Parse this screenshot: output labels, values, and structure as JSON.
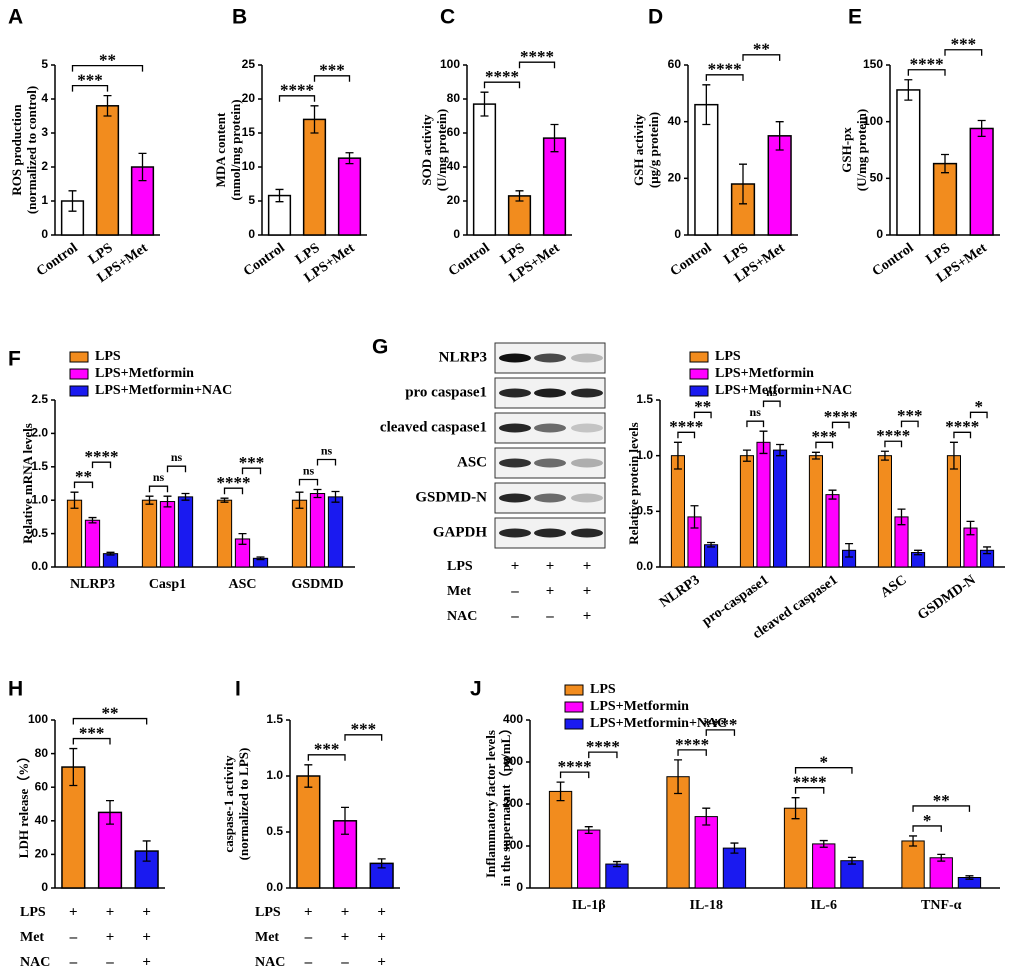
{
  "chart_data": [
    {
      "type": "bar",
      "panel": "A",
      "ylabel": [
        "ROS production",
        "(normalized to control)"
      ],
      "ylim": [
        0,
        5
      ],
      "yticks": [
        0,
        1,
        2,
        3,
        4,
        5
      ],
      "categories": [
        "Control",
        "LPS",
        "LPS+Met"
      ],
      "values": [
        1.0,
        3.8,
        2.0
      ],
      "errors": [
        0.3,
        0.3,
        0.4
      ],
      "colors": [
        "#ffffff",
        "#f28c1e",
        "#ff00ff"
      ],
      "brackets": [
        {
          "from": 0,
          "to": 1,
          "label": "***"
        },
        {
          "from": 0,
          "to": 2,
          "label": "**"
        }
      ]
    },
    {
      "type": "bar",
      "panel": "B",
      "ylabel": [
        "MDA content",
        "(nmol/mg protein)"
      ],
      "ylim": [
        0,
        25
      ],
      "yticks": [
        0,
        5,
        10,
        15,
        20,
        25
      ],
      "categories": [
        "Control",
        "LPS",
        "LPS+Met"
      ],
      "values": [
        5.8,
        17,
        11.3
      ],
      "errors": [
        0.9,
        2,
        0.8
      ],
      "colors": [
        "#ffffff",
        "#f28c1e",
        "#ff00ff"
      ],
      "brackets": [
        {
          "from": 0,
          "to": 1,
          "label": "****"
        },
        {
          "from": 1,
          "to": 2,
          "label": "***"
        }
      ]
    },
    {
      "type": "bar",
      "panel": "C",
      "ylabel": [
        "SOD activity",
        "(U/mg protein)"
      ],
      "ylim": [
        0,
        100
      ],
      "yticks": [
        0,
        20,
        40,
        60,
        80,
        100
      ],
      "categories": [
        "Control",
        "LPS",
        "LPS+Met"
      ],
      "values": [
        77,
        23,
        57
      ],
      "errors": [
        7,
        3,
        8
      ],
      "colors": [
        "#ffffff",
        "#f28c1e",
        "#ff00ff"
      ],
      "brackets": [
        {
          "from": 0,
          "to": 1,
          "label": "****"
        },
        {
          "from": 1,
          "to": 2,
          "label": "****"
        }
      ]
    },
    {
      "type": "bar",
      "panel": "D",
      "ylabel": [
        "GSH activity",
        "(μg/g protein)"
      ],
      "ylim": [
        0,
        60
      ],
      "yticks": [
        0,
        20,
        40,
        60
      ],
      "categories": [
        "Control",
        "LPS",
        "LPS+Met"
      ],
      "values": [
        46,
        18,
        35
      ],
      "errors": [
        7,
        7,
        5
      ],
      "colors": [
        "#ffffff",
        "#f28c1e",
        "#ff00ff"
      ],
      "brackets": [
        {
          "from": 0,
          "to": 1,
          "label": "****"
        },
        {
          "from": 1,
          "to": 2,
          "label": "**"
        }
      ]
    },
    {
      "type": "bar",
      "panel": "E",
      "ylabel": [
        "GSH-px",
        "(U/mg protein)"
      ],
      "ylim": [
        0,
        150
      ],
      "yticks": [
        0,
        50,
        100,
        150
      ],
      "categories": [
        "Control",
        "LPS",
        "LPS+Met"
      ],
      "values": [
        128,
        63,
        94
      ],
      "errors": [
        9,
        8,
        7
      ],
      "colors": [
        "#ffffff",
        "#f28c1e",
        "#ff00ff"
      ],
      "brackets": [
        {
          "from": 0,
          "to": 1,
          "label": "****"
        },
        {
          "from": 1,
          "to": 2,
          "label": "***"
        }
      ]
    },
    {
      "type": "grouped_bar",
      "panel": "F",
      "ylabel": [
        "Relative mRNA levels"
      ],
      "ylim": [
        0,
        2.5
      ],
      "yticks": [
        {
          "value": 0,
          "label": "0.0"
        },
        {
          "value": 0.5,
          "label": "0.5"
        },
        {
          "value": 1,
          "label": "1.0"
        },
        {
          "value": 1.5,
          "label": "1.5"
        },
        {
          "value": 2,
          "label": "2.0"
        },
        {
          "value": 2.5,
          "label": "2.5"
        }
      ],
      "categories": [
        "NLRP3",
        "Casp1",
        "ASC",
        "GSDMD"
      ],
      "legend": "upper left",
      "series": [
        {
          "name": "LPS",
          "color": "#f28c1e",
          "values": [
            1.0,
            1.0,
            1.0,
            1.0
          ],
          "errors": [
            0.12,
            0.06,
            0.03,
            0.12
          ]
        },
        {
          "name": "LPS+Metformin",
          "color": "#ff00ff",
          "values": [
            0.7,
            0.98,
            0.42,
            1.1
          ],
          "errors": [
            0.04,
            0.08,
            0.08,
            0.06
          ]
        },
        {
          "name": "LPS+Metformin+NAC",
          "color": "#1a1af0",
          "values": [
            0.2,
            1.05,
            0.13,
            1.05
          ],
          "errors": [
            0.02,
            0.05,
            0.02,
            0.08
          ]
        }
      ],
      "brackets": [
        {
          "category": 0,
          "from": 0,
          "to": 1,
          "label": "**"
        },
        {
          "category": 0,
          "from": 1,
          "to": 2,
          "label": "****"
        },
        {
          "category": 1,
          "from": 0,
          "to": 1,
          "label": "ns"
        },
        {
          "category": 1,
          "from": 1,
          "to": 2,
          "label": "ns"
        },
        {
          "category": 2,
          "from": 0,
          "to": 1,
          "label": "****"
        },
        {
          "category": 2,
          "from": 1,
          "to": 2,
          "label": "***"
        },
        {
          "category": 3,
          "from": 0,
          "to": 1,
          "label": "ns"
        },
        {
          "category": 3,
          "from": 1,
          "to": 2,
          "label": "ns"
        }
      ]
    },
    {
      "type": "grouped_bar",
      "ylabel": [
        "Relative protein levels"
      ],
      "ylim": [
        0,
        1.5
      ],
      "yticks": [
        {
          "value": 0,
          "label": "0.0"
        },
        {
          "value": 0.5,
          "label": "0.5"
        },
        {
          "value": 1,
          "label": "1.0"
        },
        {
          "value": 1.5,
          "label": "1.5"
        }
      ],
      "categories": [
        "NLRP3",
        "pro-caspase1",
        "cleaved caspase1",
        "ASC",
        "GSDMD-N"
      ],
      "legend": "upper left",
      "series": [
        {
          "name": "LPS",
          "color": "#f28c1e",
          "values": [
            1.0,
            1.0,
            1.0,
            1.0,
            1.0
          ],
          "errors": [
            0.12,
            0.05,
            0.03,
            0.04,
            0.12
          ]
        },
        {
          "name": "LPS+Metformin",
          "color": "#ff00ff",
          "values": [
            0.45,
            1.12,
            0.65,
            0.45,
            0.35
          ],
          "errors": [
            0.1,
            0.1,
            0.04,
            0.07,
            0.06
          ]
        },
        {
          "name": "LPS+Metformin+NAC",
          "color": "#1a1af0",
          "values": [
            0.2,
            1.05,
            0.15,
            0.13,
            0.15
          ],
          "errors": [
            0.02,
            0.05,
            0.06,
            0.02,
            0.03
          ]
        }
      ],
      "brackets": [
        {
          "category": 0,
          "from": 0,
          "to": 1,
          "label": "****"
        },
        {
          "category": 0,
          "from": 1,
          "to": 2,
          "label": "**"
        },
        {
          "category": 1,
          "from": 0,
          "to": 1,
          "label": "ns"
        },
        {
          "category": 1,
          "from": 1,
          "to": 2,
          "label": "ns"
        },
        {
          "category": 2,
          "from": 0,
          "to": 1,
          "label": "***"
        },
        {
          "category": 2,
          "from": 1,
          "to": 2,
          "label": "****"
        },
        {
          "category": 3,
          "from": 0,
          "to": 1,
          "label": "****"
        },
        {
          "category": 3,
          "from": 1,
          "to": 2,
          "label": "***"
        },
        {
          "category": 4,
          "from": 0,
          "to": 1,
          "label": "****"
        },
        {
          "category": 4,
          "from": 1,
          "to": 2,
          "label": "*"
        }
      ]
    },
    {
      "type": "bar",
      "panel": "H",
      "ylabel": [
        "LDH release（%）"
      ],
      "ylim": [
        0,
        100
      ],
      "yticks": [
        0,
        20,
        40,
        60,
        80,
        100
      ],
      "treatments": [
        {
          "label": "LPS",
          "marks": [
            "+",
            "+",
            "+"
          ]
        },
        {
          "label": "Met",
          "marks": [
            "–",
            "+",
            "+"
          ]
        },
        {
          "label": "NAC",
          "marks": [
            "–",
            "–",
            "+"
          ]
        }
      ],
      "values": [
        72,
        45,
        22
      ],
      "errors": [
        11,
        7,
        6
      ],
      "colors": [
        "#f28c1e",
        "#ff00ff",
        "#1a1af0"
      ],
      "brackets": [
        {
          "from": 0,
          "to": 1,
          "label": "***"
        },
        {
          "from": 0,
          "to": 2,
          "label": "**"
        }
      ]
    },
    {
      "type": "bar",
      "panel": "I",
      "ylabel": [
        "caspase-1 activity",
        "(normalized to LPS)"
      ],
      "ylim": [
        0,
        1.5
      ],
      "yticks": [
        {
          "value": 0,
          "label": "0.0"
        },
        {
          "value": 0.5,
          "label": "0.5"
        },
        {
          "value": 1,
          "label": "1.0"
        },
        {
          "value": 1.5,
          "label": "1.5"
        }
      ],
      "treatments": [
        {
          "label": "LPS",
          "marks": [
            "+",
            "+",
            "+"
          ]
        },
        {
          "label": "Met",
          "marks": [
            "–",
            "+",
            "+"
          ]
        },
        {
          "label": "NAC",
          "marks": [
            "–",
            "–",
            "+"
          ]
        }
      ],
      "values": [
        1.0,
        0.6,
        0.22
      ],
      "errors": [
        0.1,
        0.12,
        0.04
      ],
      "colors": [
        "#f28c1e",
        "#ff00ff",
        "#1a1af0"
      ],
      "brackets": [
        {
          "from": 0,
          "to": 1,
          "label": "***"
        },
        {
          "from": 1,
          "to": 2,
          "label": "***"
        }
      ]
    },
    {
      "type": "grouped_bar",
      "panel": "J",
      "ylabel": [
        "Inflammatory factor levels",
        "in the supernatant（pg/mL）"
      ],
      "ylim": [
        0,
        400
      ],
      "yticks": [
        0,
        100,
        200,
        300,
        400
      ],
      "categories": [
        "IL-1β",
        "IL-18",
        "IL-6",
        "TNF-α"
      ],
      "legend": "upper left",
      "series": [
        {
          "name": "LPS",
          "color": "#f28c1e",
          "values": [
            230,
            265,
            190,
            112
          ],
          "errors": [
            22,
            40,
            25,
            12
          ]
        },
        {
          "name": "LPS+Metformin",
          "color": "#ff00ff",
          "values": [
            138,
            170,
            105,
            72
          ],
          "errors": [
            8,
            20,
            8,
            8
          ]
        },
        {
          "name": "LPS+Metformin+NAC",
          "color": "#1a1af0",
          "values": [
            57,
            95,
            65,
            25
          ],
          "errors": [
            6,
            12,
            8,
            4
          ]
        }
      ],
      "brackets": [
        {
          "category": 0,
          "from": 0,
          "to": 1,
          "label": "****"
        },
        {
          "category": 0,
          "from": 1,
          "to": 2,
          "label": "****"
        },
        {
          "category": 1,
          "from": 0,
          "to": 1,
          "label": "****"
        },
        {
          "category": 1,
          "from": 1,
          "to": 2,
          "label": "****"
        },
        {
          "category": 2,
          "from": 0,
          "to": 1,
          "label": "****"
        },
        {
          "category": 2,
          "from": 0,
          "to": 2,
          "label": "*"
        },
        {
          "category": 3,
          "from": 0,
          "to": 1,
          "label": "*"
        },
        {
          "category": 3,
          "from": 0,
          "to": 2,
          "label": "**"
        }
      ]
    }
  ],
  "blot": {
    "panel": "G",
    "rows": [
      "NLRP3",
      "pro caspase1",
      "cleaved caspase1",
      "ASC",
      "GSDMD-N",
      "GAPDH"
    ],
    "treatments": [
      {
        "label": "LPS",
        "marks": [
          "+",
          "+",
          "+"
        ]
      },
      {
        "label": "Met",
        "marks": [
          "–",
          "+",
          "+"
        ]
      },
      {
        "label": "NAC",
        "marks": [
          "–",
          "–",
          "+"
        ]
      }
    ]
  }
}
